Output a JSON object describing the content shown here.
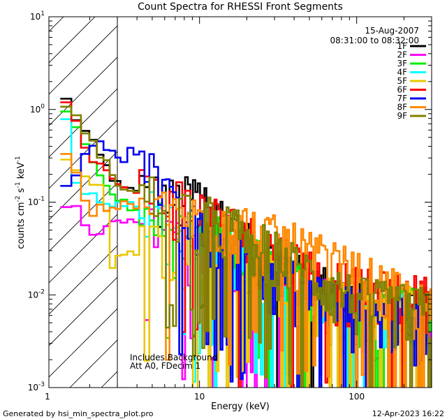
{
  "chart_data": {
    "type": "line",
    "title": "Count Spectra for RHESSI Front Segments",
    "xlabel": "Energy (keV)",
    "ylabel": {
      "base": "counts cm",
      "exp1": "-2",
      "mid": " s",
      "exp2": "-1",
      "tail": " keV",
      "exp3": "-1"
    },
    "xscale": "log",
    "yscale": "log",
    "xlim": [
      1.1,
      300
    ],
    "ylim": [
      0.001,
      10
    ],
    "x_ticks": [
      {
        "value": 1,
        "label": "1"
      },
      {
        "value": 10,
        "label": "10"
      },
      {
        "value": 100,
        "label": "100"
      }
    ],
    "y_ticks": [
      {
        "value": 0.001,
        "base": "10",
        "exp": "-3"
      },
      {
        "value": 0.01,
        "base": "10",
        "exp": "-2"
      },
      {
        "value": 0.1,
        "base": "10",
        "exp": "-1"
      },
      {
        "value": 1,
        "base": "10",
        "exp": "0"
      },
      {
        "value": 10,
        "base": "10",
        "exp": "1"
      }
    ],
    "attenuated_region": {
      "from": 1.1,
      "to": 3.0
    },
    "annotations": {
      "date": "15-Aug-2007",
      "time_range": "08:31:00 to 08:32:00",
      "line1": "Includes Background",
      "line2": "Att A0, FDecim 1"
    },
    "footer_left": "Generated by hsi_min_spectra_plot.pro",
    "footer_right": "12-Apr-2023 16:22",
    "series": [
      {
        "name": "1F",
        "color": "#000000",
        "anchors": [
          [
            1.3,
            1.25
          ],
          [
            3,
            0.14
          ],
          [
            7,
            0.09
          ],
          [
            10,
            0.11
          ],
          [
            20,
            0.03
          ],
          [
            50,
            0.012
          ],
          [
            100,
            0.008
          ],
          [
            200,
            0.006
          ],
          [
            300,
            0.01
          ]
        ]
      },
      {
        "name": "2F",
        "color": "#ff00ff",
        "anchors": [
          [
            1.3,
            0.085
          ],
          [
            1.6,
            0.09
          ],
          [
            2,
            0.04
          ],
          [
            3,
            0.07
          ],
          [
            7,
            0.04
          ],
          [
            20,
            0.02
          ],
          [
            50,
            0.01
          ],
          [
            100,
            0.006
          ],
          [
            300,
            0.004
          ]
        ]
      },
      {
        "name": "3F",
        "color": "#00ee00",
        "anchors": [
          [
            1.3,
            0.85
          ],
          [
            3,
            0.1
          ],
          [
            7,
            0.04
          ],
          [
            15,
            0.035
          ],
          [
            50,
            0.01
          ],
          [
            100,
            0.007
          ],
          [
            300,
            0.006
          ]
        ]
      },
      {
        "name": "4F",
        "color": "#00ffff",
        "anchors": [
          [
            1.3,
            0.75
          ],
          [
            1.6,
            0.12
          ],
          [
            3,
            0.1
          ],
          [
            7,
            0.05
          ],
          [
            20,
            0.02
          ],
          [
            50,
            0.008
          ],
          [
            100,
            0.006
          ],
          [
            300,
            0.005
          ]
        ]
      },
      {
        "name": "5F",
        "color": "#e8c800",
        "anchors": [
          [
            1.3,
            0.3
          ],
          [
            2.4,
            0.12
          ],
          [
            2.6,
            0.018
          ],
          [
            3,
            0.03
          ],
          [
            7,
            0.03
          ],
          [
            20,
            0.02
          ],
          [
            50,
            0.01
          ],
          [
            100,
            0.007
          ],
          [
            300,
            0.006
          ]
        ]
      },
      {
        "name": "6F",
        "color": "#ff0000",
        "anchors": [
          [
            1.3,
            1.2
          ],
          [
            2,
            0.3
          ],
          [
            3,
            0.14
          ],
          [
            7,
            0.1
          ],
          [
            15,
            0.05
          ],
          [
            40,
            0.02
          ],
          [
            100,
            0.01
          ],
          [
            300,
            0.008
          ]
        ]
      },
      {
        "name": "7F",
        "color": "#0000ee",
        "anchors": [
          [
            1.3,
            0.17
          ],
          [
            2.3,
            0.48
          ],
          [
            3,
            0.3
          ],
          [
            4,
            0.4
          ],
          [
            7,
            0.06
          ],
          [
            15,
            0.03
          ],
          [
            50,
            0.01
          ],
          [
            100,
            0.006
          ],
          [
            300,
            0.004
          ]
        ]
      },
      {
        "name": "8F",
        "color": "#ff8800",
        "anchors": [
          [
            1.3,
            0.3
          ],
          [
            2,
            0.08
          ],
          [
            3,
            0.1
          ],
          [
            7,
            0.06
          ],
          [
            15,
            0.06
          ],
          [
            40,
            0.03
          ],
          [
            100,
            0.015
          ],
          [
            300,
            0.006
          ]
        ]
      },
      {
        "name": "9F",
        "color": "#808000",
        "anchors": [
          [
            1.3,
            1.2
          ],
          [
            2,
            0.45
          ],
          [
            3,
            0.14
          ],
          [
            7,
            0.08
          ],
          [
            15,
            0.05
          ],
          [
            50,
            0.015
          ],
          [
            100,
            0.008
          ],
          [
            300,
            0.006
          ]
        ]
      }
    ]
  }
}
